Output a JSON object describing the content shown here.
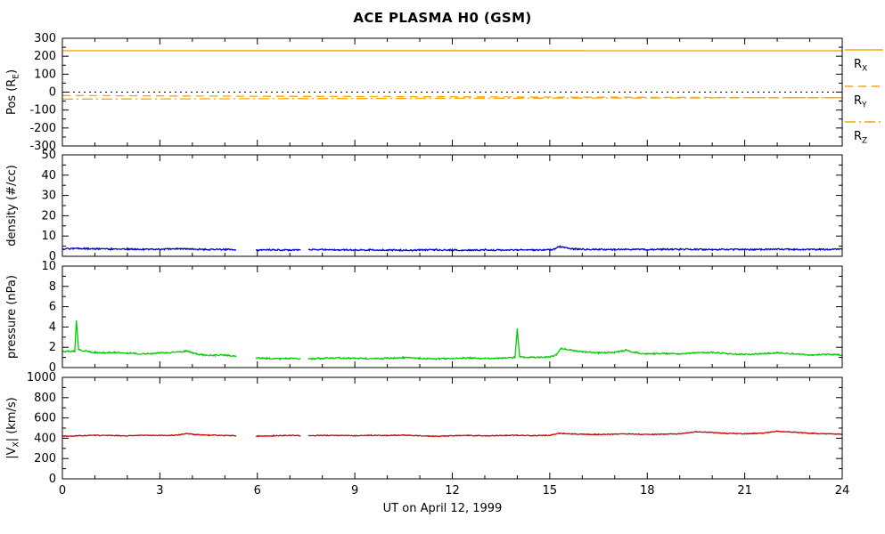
{
  "chart_data": {
    "type": "line",
    "title": "ACE PLASMA H0 (GSM)",
    "xlabel": "UT on April 12, 1999",
    "x_range": [
      0,
      24
    ],
    "x_major_ticks": [
      0,
      3,
      6,
      9,
      12,
      15,
      18,
      21,
      24
    ],
    "x_minor_step": 1,
    "axis_color": "#000000",
    "background": "#ffffff",
    "panels": [
      {
        "id": "position",
        "ylabel_parts": [
          [
            "t",
            "Pos (R"
          ],
          [
            "s",
            "E"
          ],
          [
            "t",
            ")"
          ]
        ],
        "ylim": [
          -300,
          300
        ],
        "yticks": [
          -300,
          -200,
          -100,
          0,
          100,
          200,
          300
        ],
        "y_minor_step": 50,
        "reflines": [
          {
            "y": 0,
            "color": "#000000",
            "dash": "2,4"
          }
        ],
        "series": [
          {
            "name": "R_X",
            "color": "#FFA500",
            "dash": "",
            "width": 1.4,
            "noise": 0,
            "points": [
              [
                0,
                231
              ],
              [
                24,
                230
              ]
            ]
          },
          {
            "name": "R_Y",
            "color": "#FFA500",
            "dash": "9,6",
            "width": 1.3,
            "noise": 0,
            "points": [
              [
                0,
                -19
              ],
              [
                6,
                -23
              ],
              [
                12,
                -26
              ],
              [
                18,
                -29
              ],
              [
                24,
                -31
              ]
            ]
          },
          {
            "name": "R_Z",
            "color": "#FFA500",
            "dash": "12,4,2,4",
            "width": 1.3,
            "noise": 0,
            "points": [
              [
                0,
                -39
              ],
              [
                8,
                -36
              ],
              [
                16,
                -33
              ],
              [
                24,
                -31
              ]
            ]
          }
        ]
      },
      {
        "id": "density",
        "ylabel_parts": [
          [
            "t",
            "density (#/cc)"
          ]
        ],
        "ylim": [
          0,
          50
        ],
        "yticks": [
          0,
          10,
          20,
          30,
          40,
          50
        ],
        "y_minor_step": 5,
        "reflines": [],
        "series": [
          {
            "name": "density",
            "color": "#0000CC",
            "dash": "",
            "width": 1.3,
            "noise": 0.35,
            "gaps": [
              [
                5.35,
                5.95
              ],
              [
                7.35,
                7.55
              ]
            ],
            "points": [
              [
                0,
                3.6
              ],
              [
                0.5,
                3.9
              ],
              [
                1,
                3.7
              ],
              [
                1.5,
                3.5
              ],
              [
                2,
                3.6
              ],
              [
                2.5,
                3.4
              ],
              [
                3,
                3.5
              ],
              [
                3.5,
                3.7
              ],
              [
                4,
                3.5
              ],
              [
                4.5,
                3.3
              ],
              [
                5,
                3.4
              ],
              [
                5.35,
                3.3
              ],
              [
                5.95,
                3.1
              ],
              [
                6.5,
                3.2
              ],
              [
                7,
                3.1
              ],
              [
                7.55,
                3.2
              ],
              [
                8,
                3.3
              ],
              [
                8.5,
                3.2
              ],
              [
                9,
                3.1
              ],
              [
                9.5,
                3.2
              ],
              [
                10,
                3.1
              ],
              [
                10.5,
                3.0
              ],
              [
                11,
                3.1
              ],
              [
                11.5,
                3.2
              ],
              [
                12,
                3.1
              ],
              [
                12.5,
                3.0
              ],
              [
                13,
                3.1
              ],
              [
                13.5,
                3.0
              ],
              [
                14,
                3.2
              ],
              [
                14.5,
                3.1
              ],
              [
                15,
                3.3
              ],
              [
                15.15,
                3.4
              ],
              [
                15.3,
                4.9
              ],
              [
                15.45,
                4.2
              ],
              [
                15.7,
                3.7
              ],
              [
                16,
                3.5
              ],
              [
                16.5,
                3.4
              ],
              [
                17,
                3.3
              ],
              [
                17.5,
                3.4
              ],
              [
                18,
                3.3
              ],
              [
                18.5,
                3.4
              ],
              [
                19,
                3.5
              ],
              [
                19.5,
                3.4
              ],
              [
                20,
                3.3
              ],
              [
                20.5,
                3.4
              ],
              [
                21,
                3.3
              ],
              [
                21.5,
                3.4
              ],
              [
                22,
                3.5
              ],
              [
                22.5,
                3.4
              ],
              [
                23,
                3.3
              ],
              [
                23.5,
                3.4
              ],
              [
                24,
                3.5
              ]
            ]
          }
        ]
      },
      {
        "id": "pressure",
        "ylabel_parts": [
          [
            "t",
            "pressure (nPa)"
          ]
        ],
        "ylim": [
          0,
          10
        ],
        "yticks": [
          0,
          2,
          4,
          6,
          8,
          10
        ],
        "y_minor_step": 1,
        "reflines": [],
        "series": [
          {
            "name": "pressure",
            "color": "#00CC00",
            "dash": "",
            "width": 1.3,
            "noise": 0.07,
            "gaps": [
              [
                5.35,
                5.95
              ],
              [
                7.35,
                7.55
              ]
            ],
            "points": [
              [
                0,
                1.55
              ],
              [
                0.2,
                1.6
              ],
              [
                0.38,
                1.6
              ],
              [
                0.43,
                4.6
              ],
              [
                0.5,
                1.75
              ],
              [
                0.8,
                1.6
              ],
              [
                1,
                1.5
              ],
              [
                1.3,
                1.45
              ],
              [
                1.6,
                1.5
              ],
              [
                2,
                1.45
              ],
              [
                2.4,
                1.35
              ],
              [
                2.8,
                1.4
              ],
              [
                3.2,
                1.45
              ],
              [
                3.6,
                1.55
              ],
              [
                3.85,
                1.65
              ],
              [
                4,
                1.45
              ],
              [
                4.3,
                1.25
              ],
              [
                4.7,
                1.2
              ],
              [
                5,
                1.25
              ],
              [
                5.35,
                1.1
              ],
              [
                5.95,
                0.95
              ],
              [
                6.3,
                0.9
              ],
              [
                6.7,
                0.85
              ],
              [
                7,
                0.9
              ],
              [
                7.55,
                0.85
              ],
              [
                8,
                0.9
              ],
              [
                8.5,
                0.95
              ],
              [
                9,
                0.9
              ],
              [
                9.5,
                0.88
              ],
              [
                10,
                0.92
              ],
              [
                10.5,
                0.98
              ],
              [
                11,
                0.9
              ],
              [
                11.5,
                0.85
              ],
              [
                12,
                0.9
              ],
              [
                12.5,
                0.95
              ],
              [
                13,
                0.9
              ],
              [
                13.5,
                0.92
              ],
              [
                13.93,
                1.0
              ],
              [
                14,
                3.8
              ],
              [
                14.07,
                1.05
              ],
              [
                14.5,
                1.0
              ],
              [
                15,
                1.05
              ],
              [
                15.2,
                1.25
              ],
              [
                15.35,
                1.9
              ],
              [
                15.6,
                1.75
              ],
              [
                16,
                1.55
              ],
              [
                16.5,
                1.45
              ],
              [
                17,
                1.5
              ],
              [
                17.35,
                1.7
              ],
              [
                17.7,
                1.45
              ],
              [
                18,
                1.35
              ],
              [
                18.5,
                1.4
              ],
              [
                19,
                1.35
              ],
              [
                19.5,
                1.45
              ],
              [
                20,
                1.5
              ],
              [
                20.5,
                1.35
              ],
              [
                21,
                1.3
              ],
              [
                21.5,
                1.35
              ],
              [
                22,
                1.45
              ],
              [
                22.5,
                1.35
              ],
              [
                23,
                1.25
              ],
              [
                23.5,
                1.3
              ],
              [
                24,
                1.25
              ]
            ]
          }
        ]
      },
      {
        "id": "speed",
        "ylabel_parts": [
          [
            "t",
            "|V"
          ],
          [
            "s",
            "X"
          ],
          [
            "t",
            "| (km/s)"
          ]
        ],
        "ylim": [
          0,
          1000
        ],
        "yticks": [
          0,
          200,
          400,
          600,
          800,
          1000
        ],
        "y_minor_step": 100,
        "reflines": [],
        "series": [
          {
            "name": "Vx",
            "color": "#CC0000",
            "dash": "",
            "width": 1.3,
            "noise": 4,
            "gaps": [
              [
                5.35,
                5.95
              ],
              [
                7.35,
                7.55
              ]
            ],
            "points": [
              [
                0,
                420
              ],
              [
                0.5,
                424
              ],
              [
                1,
                429
              ],
              [
                1.5,
                427
              ],
              [
                2,
                424
              ],
              [
                2.5,
                429
              ],
              [
                3,
                427
              ],
              [
                3.5,
                431
              ],
              [
                3.85,
                446
              ],
              [
                4.1,
                436
              ],
              [
                4.5,
                430
              ],
              [
                5,
                427
              ],
              [
                5.35,
                424
              ],
              [
                5.95,
                420
              ],
              [
                6.5,
                424
              ],
              [
                7,
                429
              ],
              [
                7.55,
                424
              ],
              [
                8,
                429
              ],
              [
                8.5,
                427
              ],
              [
                9,
                424
              ],
              [
                9.5,
                429
              ],
              [
                10,
                427
              ],
              [
                10.5,
                431
              ],
              [
                11,
                424
              ],
              [
                11.5,
                419
              ],
              [
                12,
                424
              ],
              [
                12.5,
                427
              ],
              [
                13,
                424
              ],
              [
                13.5,
                427
              ],
              [
                14,
                429
              ],
              [
                14.5,
                427
              ],
              [
                15,
                429
              ],
              [
                15.3,
                449
              ],
              [
                15.6,
                444
              ],
              [
                16,
                439
              ],
              [
                16.5,
                437
              ],
              [
                17,
                440
              ],
              [
                17.5,
                442
              ],
              [
                18,
                437
              ],
              [
                18.5,
                440
              ],
              [
                19,
                444
              ],
              [
                19.5,
                464
              ],
              [
                19.9,
                459
              ],
              [
                20.4,
                449
              ],
              [
                21,
                444
              ],
              [
                21.5,
                449
              ],
              [
                22,
                469
              ],
              [
                22.4,
                462
              ],
              [
                23,
                449
              ],
              [
                23.5,
                444
              ],
              [
                24,
                441
              ]
            ]
          }
        ]
      }
    ],
    "legend": {
      "color": "#FFA500",
      "entries": [
        {
          "label_parts": [
            [
              "t",
              "R"
            ],
            [
              "s",
              "X"
            ]
          ],
          "dash": ""
        },
        {
          "label_parts": [
            [
              "t",
              "R"
            ],
            [
              "s",
              "Y"
            ]
          ],
          "dash": "9,6"
        },
        {
          "label_parts": [
            [
              "t",
              "R"
            ],
            [
              "s",
              "Z"
            ]
          ],
          "dash": "12,4,2,4"
        }
      ]
    }
  }
}
